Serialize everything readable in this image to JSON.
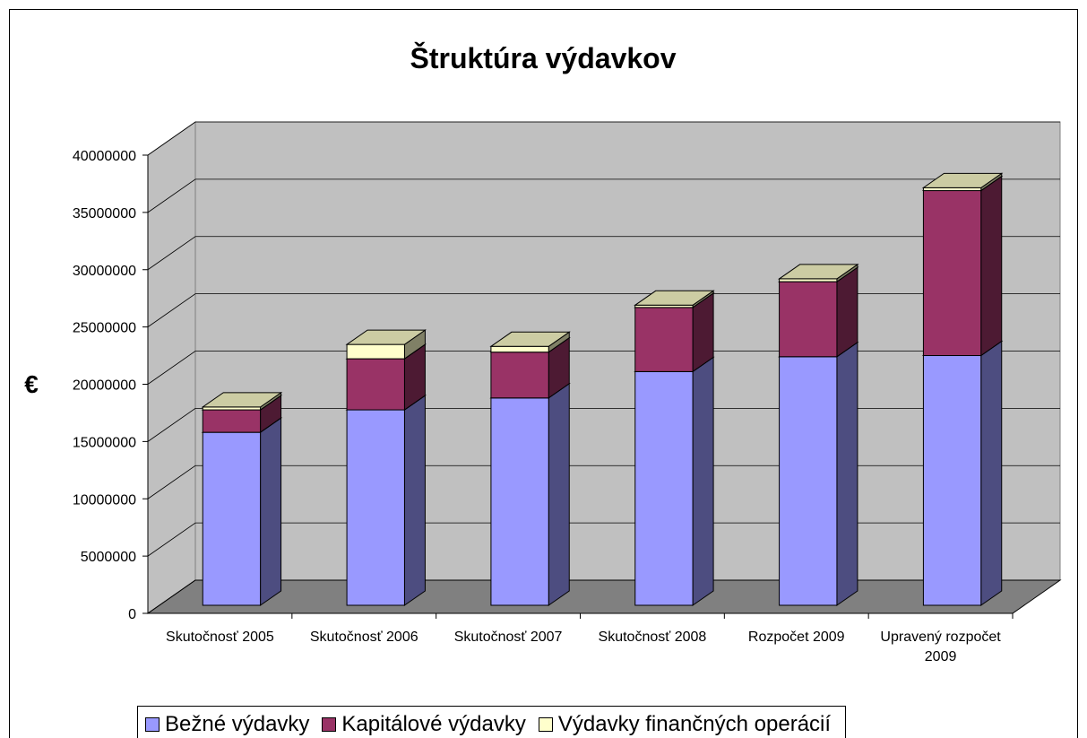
{
  "chart_data": {
    "type": "bar3d_stacked",
    "title": "Štruktúra výdavkov",
    "ylabel": "€",
    "categories": [
      "Skutočnosť 2005",
      "Skutočnosť 2006",
      "Skutočnosť 2007",
      "Skutočnosť 2008",
      "Rozpočet 2009",
      "Upravený rozpočet 2009"
    ],
    "series": [
      {
        "name": "Bežné výdavky",
        "color": "#9999ff",
        "values": [
          15100000,
          17060000,
          18100000,
          20400000,
          21700000,
          21800000
        ]
      },
      {
        "name": "Kapitálové výdavky",
        "color": "#993366",
        "values": [
          1960000,
          4460000,
          4000000,
          5600000,
          6550000,
          14400000
        ]
      },
      {
        "name": "Výdavky finančných operácií",
        "color": "#ffffcc",
        "values": [
          250000,
          1250000,
          500000,
          200000,
          250000,
          250000
        ]
      }
    ],
    "ylim": [
      0,
      40000000
    ],
    "yticks": [
      0,
      5000000,
      10000000,
      15000000,
      20000000,
      25000000,
      30000000,
      35000000,
      40000000
    ],
    "grid": true,
    "legend": "bottom"
  }
}
